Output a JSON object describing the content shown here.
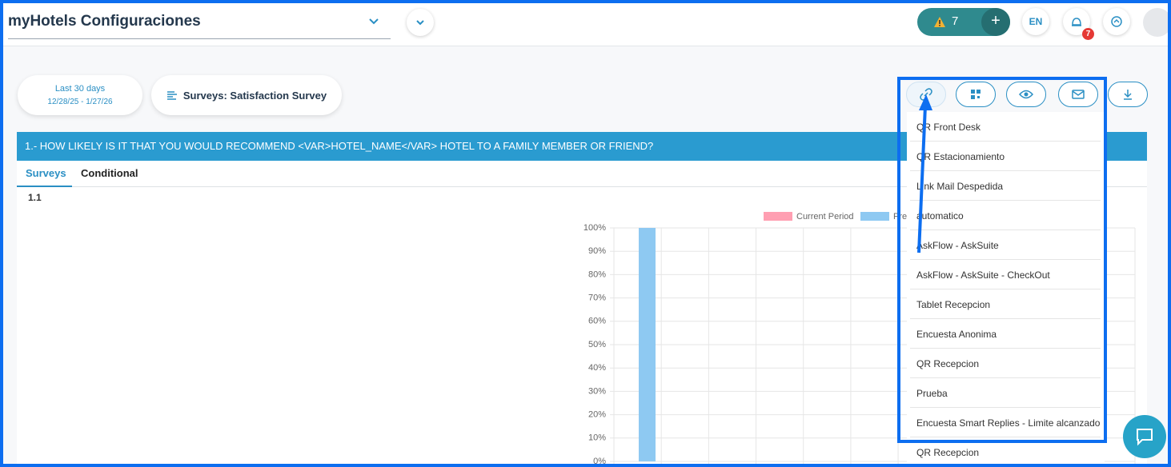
{
  "header": {
    "title": "myHotels Configuraciones",
    "alerts": "7",
    "language": "EN",
    "notifications": "7"
  },
  "filters": {
    "period": "Last 30 days",
    "dates": "12/28/25 - 1/27/26",
    "survey": "Surveys: Satisfaction Survey"
  },
  "question": "1.- HOW LIKELY IS IT THAT YOU WOULD RECOMMEND <VAR>HOTEL_NAME</VAR> HOTEL TO A FAMILY MEMBER OR FRIEND?",
  "tabs": [
    "Surveys",
    "Conditional"
  ],
  "section": "1.1",
  "chart": {
    "type": "bar",
    "series": [
      {
        "name": "Current Period",
        "color": "#ff9fb2",
        "values": [
          null
        ]
      },
      {
        "name": "Pre",
        "color": "#8ec9f2",
        "values": [
          100
        ]
      }
    ],
    "ylim": [
      0,
      100
    ],
    "yticks": [
      {
        "value": 0,
        "label": "0%"
      },
      {
        "value": 10,
        "label": "10%"
      },
      {
        "value": 20,
        "label": "20%"
      },
      {
        "value": 30,
        "label": "30%"
      },
      {
        "value": 40,
        "label": "40%"
      },
      {
        "value": 50,
        "label": "50%"
      },
      {
        "value": 60,
        "label": "60%"
      },
      {
        "value": 70,
        "label": "70%"
      },
      {
        "value": 80,
        "label": "80%"
      },
      {
        "value": 90,
        "label": "90%"
      },
      {
        "value": 100,
        "label": "100%"
      }
    ]
  },
  "menu": {
    "items": [
      "QR Front Desk",
      "QR Estacionamiento",
      "Link Mail Despedida",
      "automatico",
      "AskFlow - AskSuite",
      "AskFlow - AskSuite - CheckOut",
      "Tablet Recepcion",
      "Encuesta Anonima",
      "QR Recepcion",
      "Prueba",
      "Encuesta Smart Replies - Limite alcanzado",
      "QR Recepcion"
    ]
  }
}
